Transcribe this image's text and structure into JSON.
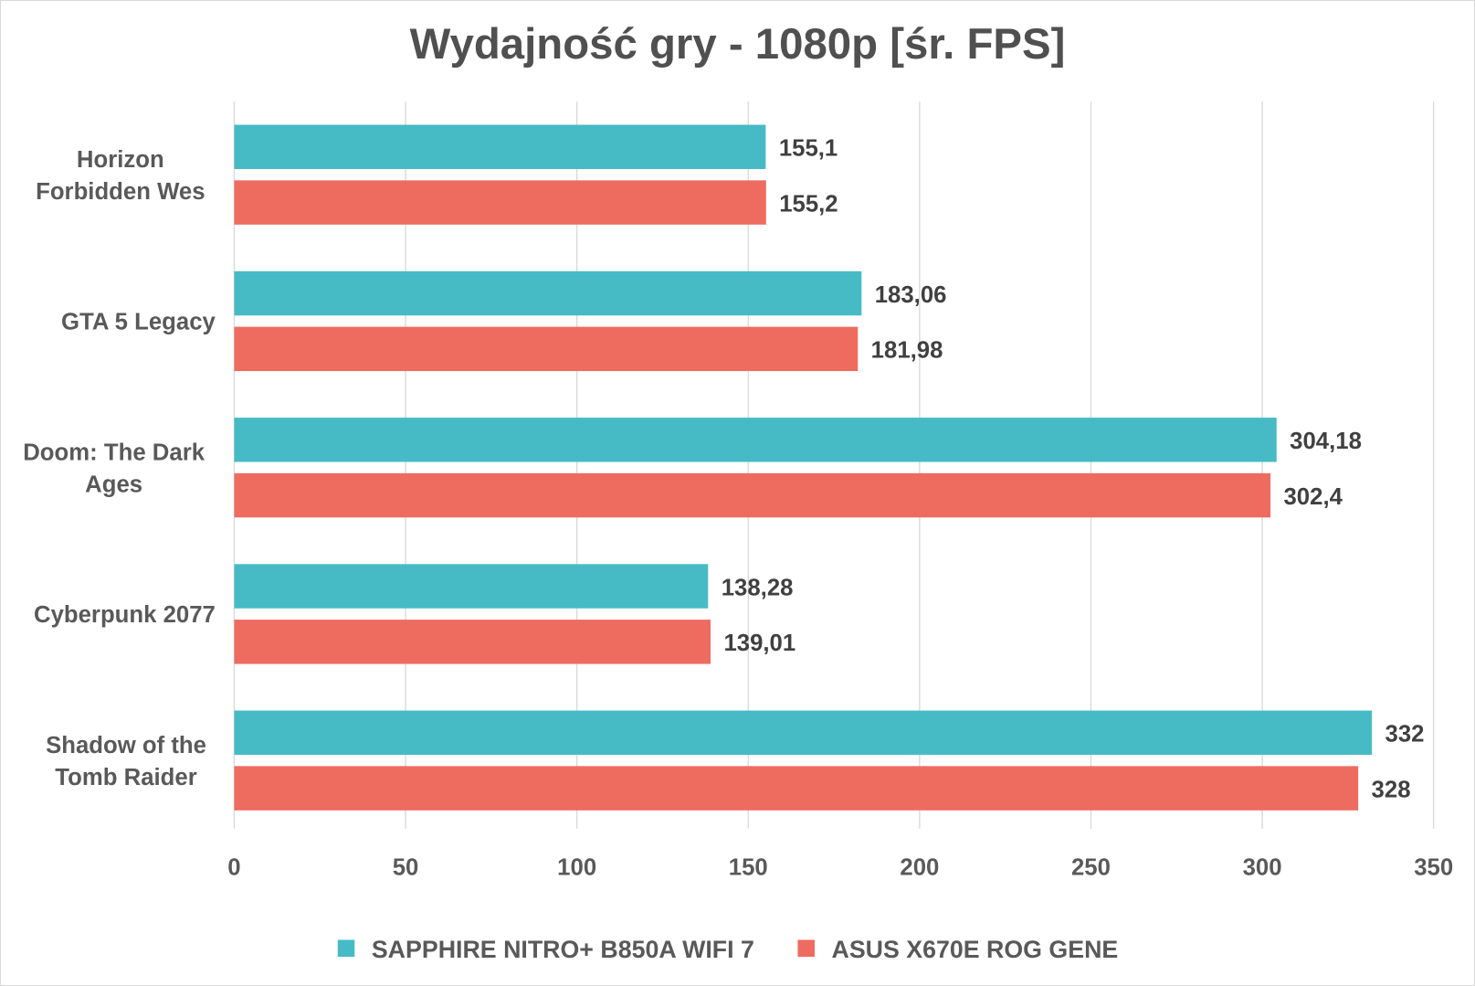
{
  "chart_data": {
    "type": "bar",
    "orientation": "horizontal",
    "title": "Wydajność gry - 1080p [śr. FPS]",
    "categories": [
      [
        "Horizon",
        "Forbidden Wes"
      ],
      [
        "GTA 5 Legacy"
      ],
      [
        "Doom: The Dark",
        "Ages"
      ],
      [
        "Cyberpunk 2077"
      ],
      [
        "Shadow of the",
        "Tomb Raider"
      ]
    ],
    "series": [
      {
        "name": "SAPPHIRE NITRO+ B850A WIFI 7",
        "color": "#46BBC5",
        "values": [
          155.1,
          183.06,
          304.18,
          138.28,
          332
        ],
        "labels": [
          "155,1",
          "183,06",
          "304,18",
          "138,28",
          "332"
        ]
      },
      {
        "name": "ASUS X670E ROG GENE",
        "color": "#EE6B60",
        "values": [
          155.2,
          181.98,
          302.4,
          139.01,
          328
        ],
        "labels": [
          "155,2",
          "181,98",
          "302,4",
          "139,01",
          "328"
        ]
      }
    ],
    "xlim": [
      0,
      350
    ],
    "xticks": [
      "0",
      "50",
      "100",
      "150",
      "200",
      "250",
      "300",
      "350"
    ],
    "grid": true,
    "legend": "bottom",
    "xlabel": "",
    "ylabel": ""
  }
}
